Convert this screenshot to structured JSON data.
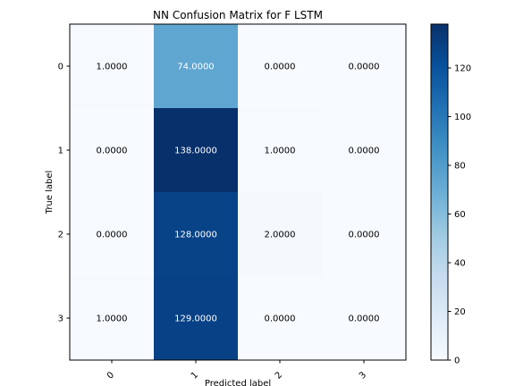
{
  "chart_data": {
    "type": "heatmap",
    "title": "NN Confusion Matrix for F LSTM",
    "xlabel": "Predicted label",
    "ylabel": "True label",
    "x_categories": [
      "0",
      "1",
      "2",
      "3"
    ],
    "y_categories": [
      "0",
      "1",
      "2",
      "3"
    ],
    "values": [
      [
        1,
        74,
        0,
        0
      ],
      [
        0,
        138,
        1,
        0
      ],
      [
        0,
        128,
        2,
        0
      ],
      [
        1,
        129,
        0,
        0
      ]
    ],
    "cell_labels": [
      [
        "1.0000",
        "74.0000",
        "0.0000",
        "0.0000"
      ],
      [
        "0.0000",
        "138.0000",
        "1.0000",
        "0.0000"
      ],
      [
        "0.0000",
        "128.0000",
        "2.0000",
        "0.0000"
      ],
      [
        "1.0000",
        "129.0000",
        "0.0000",
        "0.0000"
      ]
    ],
    "colormap": "Blues",
    "color_range": [
      0,
      138
    ],
    "colorbar_ticks": [
      "0",
      "20",
      "40",
      "60",
      "80",
      "100",
      "120"
    ],
    "colorbar_tick_values": [
      0,
      20,
      40,
      60,
      80,
      100,
      120
    ],
    "x_tick_rotation": 45,
    "grid": false
  }
}
